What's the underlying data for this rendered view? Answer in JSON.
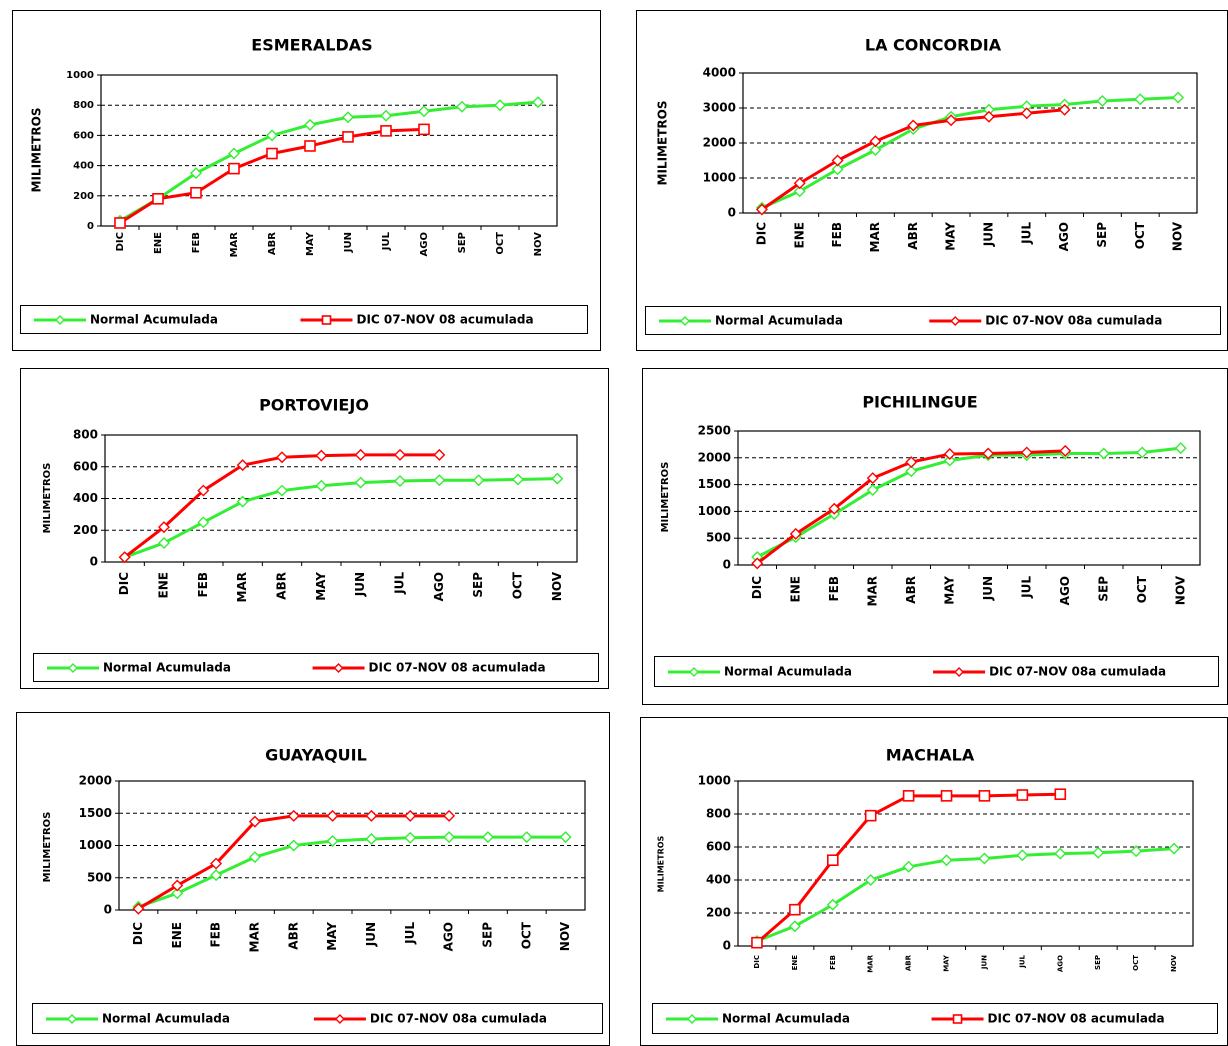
{
  "colors": {
    "normal": "#33ee33",
    "actual": "#ff0000",
    "grid": "#000000"
  },
  "chart_data": [
    {
      "type": "line",
      "title": "ESMERALDAS",
      "ylabel": "MILIMETROS",
      "categories": [
        "DIC",
        "ENE",
        "FEB",
        "MAR",
        "ABR",
        "MAY",
        "JUN",
        "JUL",
        "AGO",
        "SEP",
        "OCT",
        "NOV"
      ],
      "ylim": [
        0,
        1000
      ],
      "yticks": [
        0,
        200,
        400,
        600,
        800,
        1000
      ],
      "grid": true,
      "legend_position": "bottom",
      "series": [
        {
          "name": "Normal Acumulada",
          "marker": "diamond",
          "values": [
            35,
            180,
            350,
            480,
            600,
            670,
            720,
            730,
            760,
            790,
            800,
            820
          ]
        },
        {
          "name": "DIC 07-NOV 08 acumulada",
          "marker": "square",
          "values": [
            20,
            180,
            220,
            380,
            480,
            530,
            590,
            630,
            640,
            null,
            null,
            null
          ]
        }
      ]
    },
    {
      "type": "line",
      "title": "LA  CONCORDIA",
      "ylabel": "MILIMETROS",
      "categories": [
        "DIC",
        "ENE",
        "FEB",
        "MAR",
        "ABR",
        "MAY",
        "JUN",
        "JUL",
        "AGO",
        "SEP",
        "OCT",
        "NOV"
      ],
      "ylim": [
        0,
        4000
      ],
      "yticks": [
        0,
        1000,
        2000,
        3000,
        4000
      ],
      "grid": true,
      "legend_position": "bottom",
      "series": [
        {
          "name": "Normal Acumulada",
          "marker": "diamond",
          "values": [
            150,
            620,
            1250,
            1800,
            2400,
            2750,
            2950,
            3050,
            3100,
            3200,
            3250,
            3300
          ]
        },
        {
          "name": "DIC 07-NOV 08a cumulada",
          "marker": "diamond",
          "values": [
            100,
            850,
            1500,
            2050,
            2500,
            2650,
            2750,
            2850,
            2950,
            null,
            null,
            null
          ]
        }
      ]
    },
    {
      "type": "line",
      "title": "PORTOVIEJO",
      "ylabel": "MILIMETROS",
      "categories": [
        "DIC",
        "ENE",
        "FEB",
        "MAR",
        "ABR",
        "MAY",
        "JUN",
        "JUL",
        "AGO",
        "SEP",
        "OCT",
        "NOV"
      ],
      "ylim": [
        0,
        800
      ],
      "yticks": [
        0,
        200,
        400,
        600,
        800
      ],
      "grid": true,
      "legend_position": "bottom",
      "series": [
        {
          "name": "Normal Acumulada",
          "marker": "diamond",
          "values": [
            30,
            120,
            250,
            380,
            450,
            480,
            500,
            510,
            515,
            515,
            520,
            525
          ]
        },
        {
          "name": "DIC 07-NOV 08 acumulada",
          "marker": "diamond",
          "values": [
            30,
            220,
            450,
            610,
            660,
            670,
            675,
            675,
            675,
            null,
            null,
            null
          ]
        }
      ]
    },
    {
      "type": "line",
      "title": "PICHILINGUE",
      "ylabel": "MILIMETROS",
      "categories": [
        "DIC",
        "ENE",
        "FEB",
        "MAR",
        "ABR",
        "MAY",
        "JUN",
        "JUL",
        "AGO",
        "SEP",
        "OCT",
        "NOV"
      ],
      "ylim": [
        0,
        2500
      ],
      "yticks": [
        0,
        500,
        1000,
        1500,
        2000,
        2500
      ],
      "grid": true,
      "legend_position": "bottom",
      "series": [
        {
          "name": "Normal Acumulada",
          "marker": "diamond",
          "values": [
            150,
            520,
            950,
            1400,
            1750,
            1950,
            2050,
            2050,
            2080,
            2080,
            2100,
            2180
          ]
        },
        {
          "name": "DIC 07-NOV 08a cumulada",
          "marker": "diamond",
          "values": [
            30,
            580,
            1050,
            1620,
            1920,
            2070,
            2080,
            2100,
            2130,
            null,
            null,
            null
          ]
        }
      ]
    },
    {
      "type": "line",
      "title": "GUAYAQUIL",
      "ylabel": "MILIMETROS",
      "categories": [
        "DIC",
        "ENE",
        "FEB",
        "MAR",
        "ABR",
        "MAY",
        "JUN",
        "JUL",
        "AGO",
        "SEP",
        "OCT",
        "NOV"
      ],
      "ylim": [
        0,
        2000
      ],
      "yticks": [
        0,
        500,
        1000,
        1500,
        2000
      ],
      "grid": true,
      "legend_position": "bottom",
      "series": [
        {
          "name": "Normal Acumulada",
          "marker": "diamond",
          "values": [
            50,
            260,
            540,
            820,
            1000,
            1070,
            1100,
            1120,
            1130,
            1130,
            1130,
            1130
          ]
        },
        {
          "name": "DIC 07-NOV 08a cumulada",
          "marker": "diamond",
          "values": [
            20,
            380,
            720,
            1370,
            1460,
            1460,
            1460,
            1460,
            1460,
            null,
            null,
            null
          ]
        }
      ]
    },
    {
      "type": "line",
      "title": "MACHALA",
      "ylabel": "MILIMETROS",
      "categories": [
        "DIC",
        "ENE",
        "FEB",
        "MAR",
        "ABR",
        "MAY",
        "JUN",
        "JUL",
        "AGO",
        "SEP",
        "OCT",
        "NOV"
      ],
      "ylim": [
        0,
        1000
      ],
      "yticks": [
        0,
        200,
        400,
        600,
        800,
        1000
      ],
      "grid": true,
      "legend_position": "bottom",
      "series": [
        {
          "name": "Normal Acumulada",
          "marker": "diamond",
          "values": [
            30,
            120,
            250,
            400,
            480,
            520,
            530,
            550,
            560,
            565,
            575,
            590
          ]
        },
        {
          "name": "DIC 07-NOV 08 acumulada",
          "marker": "square",
          "values": [
            20,
            220,
            520,
            790,
            910,
            910,
            910,
            915,
            920,
            null,
            null,
            null
          ]
        }
      ]
    }
  ]
}
